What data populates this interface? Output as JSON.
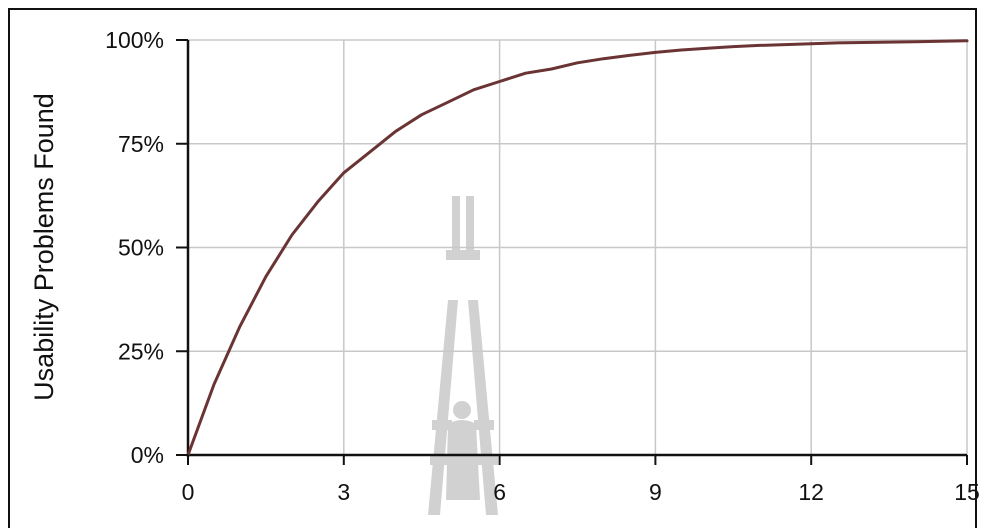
{
  "chart_data": {
    "type": "line",
    "title": "",
    "xlabel": "",
    "ylabel": "Usability Problems Found",
    "xlim": [
      0,
      15
    ],
    "ylim": [
      0,
      100
    ],
    "x_ticks": [
      "0",
      "3",
      "6",
      "9",
      "12",
      "15"
    ],
    "x_tick_values": [
      0,
      3,
      6,
      9,
      12,
      15
    ],
    "y_ticks": [
      "0%",
      "25%",
      "50%",
      "75%",
      "100%"
    ],
    "y_tick_values": [
      0,
      25,
      50,
      75,
      100
    ],
    "grid": true,
    "legend": "none",
    "series": [
      {
        "color": "#6b3434",
        "x": [
          0,
          0.5,
          1,
          1.5,
          2,
          2.5,
          3,
          3.5,
          4,
          4.5,
          5,
          5.5,
          6,
          6.5,
          7,
          7.5,
          8,
          8.5,
          9,
          9.5,
          10,
          10.5,
          11,
          11.5,
          12,
          12.5,
          13,
          13.5,
          14,
          14.5,
          15
        ],
        "y": [
          0,
          17,
          31,
          43,
          53,
          61,
          68,
          73,
          78,
          82,
          85,
          88,
          90,
          92,
          93,
          94.5,
          95.5,
          96.3,
          97,
          97.6,
          98,
          98.4,
          98.7,
          98.9,
          99.1,
          99.3,
          99.4,
          99.5,
          99.6,
          99.7,
          99.8
        ]
      }
    ]
  },
  "watermark": {
    "description_icon": "university-seal-watermark-icon",
    "color": "#9a9a9a"
  }
}
